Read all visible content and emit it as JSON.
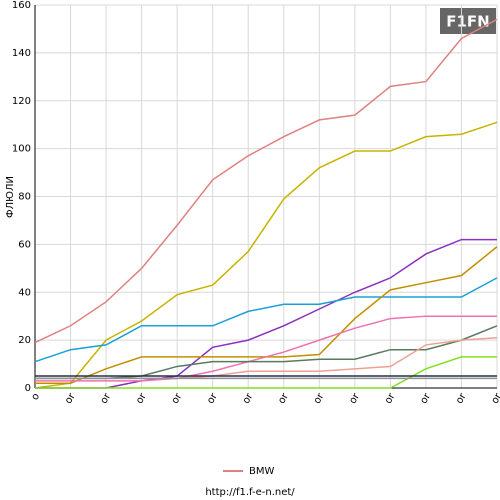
{
  "logo": "F1FN",
  "footer": "http://f1.f-e-n.net/",
  "chart_data": {
    "type": "line",
    "y_label": "ФЛЮЛИ",
    "categories": [
      "o",
      "or",
      "or",
      "or",
      "or",
      "or",
      "or",
      "or",
      "or",
      "or",
      "or",
      "or",
      "or",
      "or"
    ],
    "ylim": [
      0,
      160
    ],
    "yticks": [
      0,
      20,
      40,
      60,
      80,
      100,
      120,
      140,
      160
    ],
    "grid": true,
    "legend": "bottom",
    "series": [
      {
        "name": "BMW",
        "color": "#e08080",
        "values": [
          19,
          26,
          36,
          50,
          68,
          87,
          97,
          105,
          112,
          114,
          126,
          128,
          146,
          154
        ]
      },
      {
        "color": "#c8b400",
        "values": [
          0,
          2,
          20,
          28,
          39,
          43,
          57,
          79,
          92,
          99,
          99,
          105,
          106,
          111
        ]
      },
      {
        "color": "#8a2fc0",
        "values": [
          0,
          0,
          0,
          3,
          5,
          17,
          20,
          26,
          33,
          40,
          46,
          56,
          62,
          62
        ]
      },
      {
        "color": "#1aa0d8",
        "values": [
          11,
          16,
          18,
          26,
          26,
          26,
          32,
          35,
          35,
          38,
          38,
          38,
          38,
          46
        ]
      },
      {
        "color": "#c09000",
        "values": [
          2,
          2,
          8,
          13,
          13,
          13,
          13,
          13,
          14,
          29,
          41,
          44,
          47,
          59
        ]
      },
      {
        "color": "#f070b0",
        "values": [
          3,
          3,
          3,
          3,
          4,
          7,
          11,
          15,
          20,
          25,
          29,
          30,
          30,
          30
        ]
      },
      {
        "color": "#5a7a60",
        "values": [
          4,
          4,
          4,
          5,
          9,
          11,
          11,
          11,
          12,
          12,
          16,
          16,
          20,
          26
        ]
      },
      {
        "color": "#f0a090",
        "values": [
          4,
          4,
          4,
          4,
          4,
          5,
          7,
          7,
          7,
          8,
          9,
          18,
          20,
          21
        ]
      },
      {
        "color": "#80e020",
        "values": [
          0,
          0,
          0,
          0,
          0,
          0,
          0,
          0,
          0,
          0,
          0,
          8,
          13,
          13
        ]
      },
      {
        "color": "#203050",
        "values": [
          5,
          5,
          5,
          5,
          5,
          5,
          5,
          5,
          5,
          5,
          5,
          5,
          5,
          5
        ]
      },
      {
        "color": "#909090",
        "values": [
          4,
          4,
          4,
          4,
          4,
          4,
          4,
          4,
          4,
          4,
          4,
          4,
          4,
          4
        ]
      }
    ]
  }
}
